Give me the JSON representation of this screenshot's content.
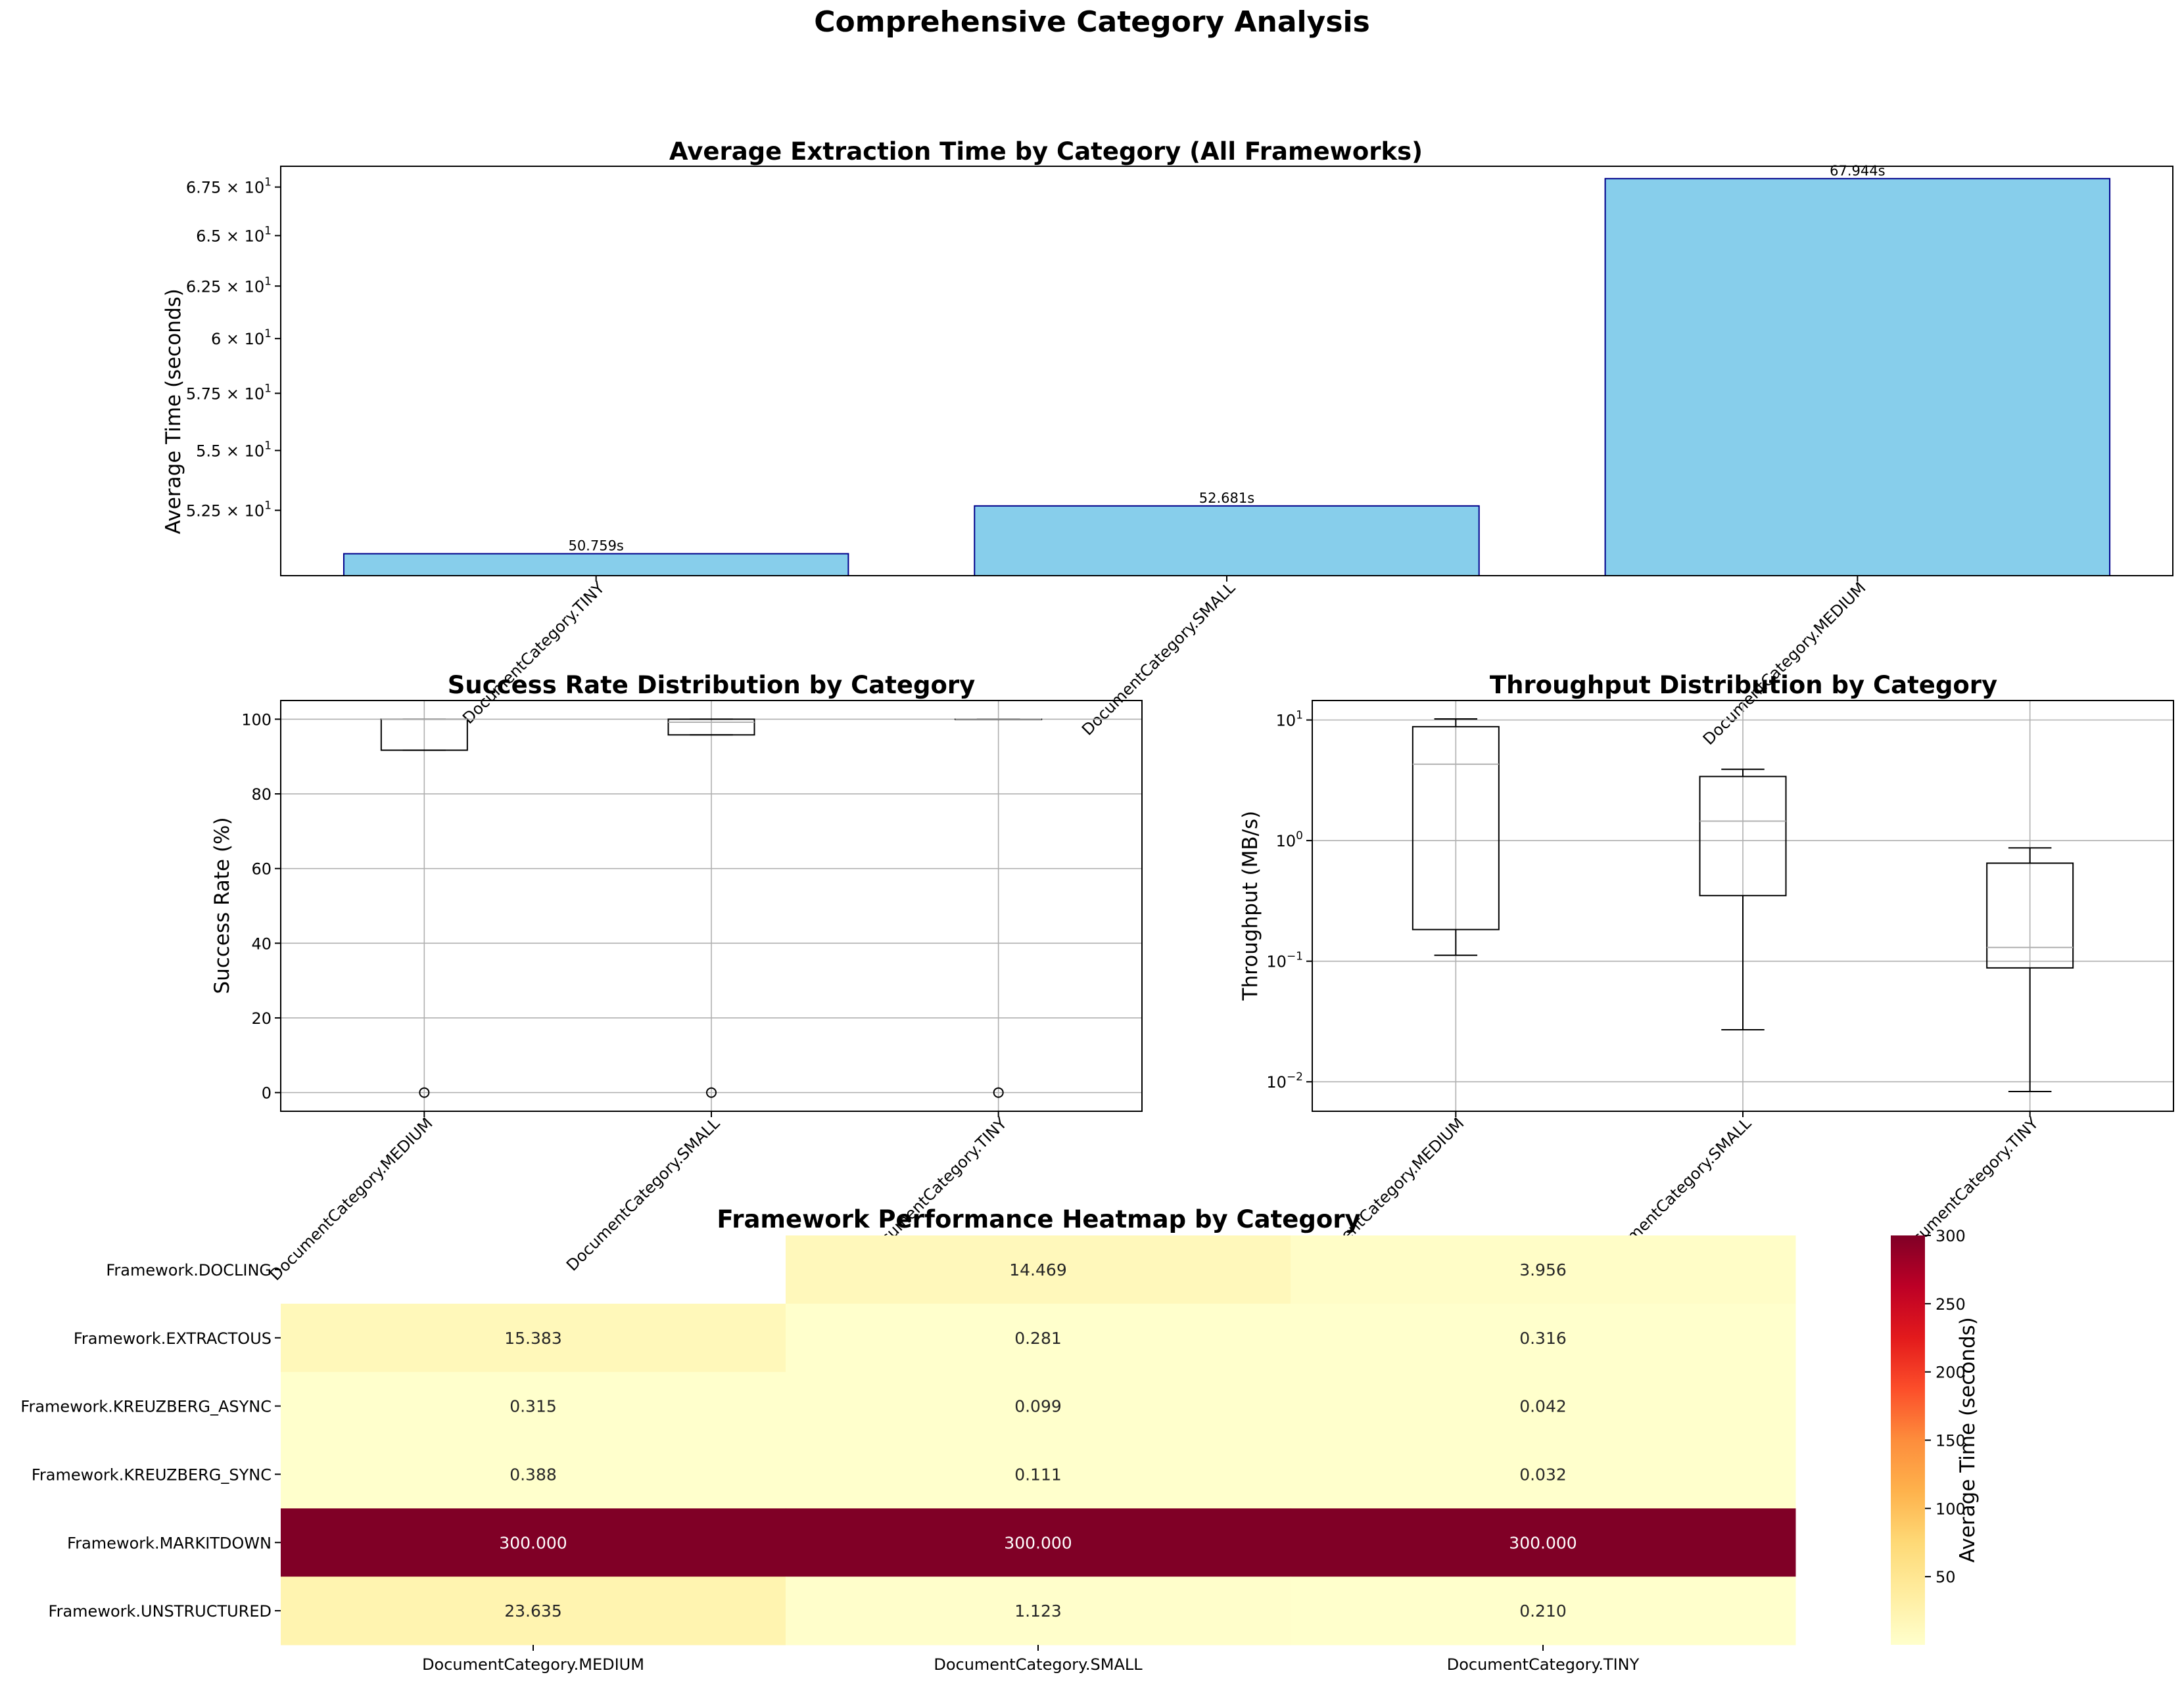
{
  "suptitle": "Comprehensive Category Analysis",
  "chart_data": [
    {
      "type": "bar",
      "title": "Average Extraction Time by Category (All Frameworks)",
      "xlabel": "",
      "ylabel": "Average Time (seconds)",
      "yscale": "log",
      "ylim": [
        49.9,
        68.6
      ],
      "categories": [
        "DocumentCategory.TINY",
        "DocumentCategory.SMALL",
        "DocumentCategory.MEDIUM"
      ],
      "values": [
        50.759,
        52.681,
        67.944
      ],
      "data_labels": [
        "50.759s",
        "52.681s",
        "67.944s"
      ],
      "yticks": [
        52.5,
        55,
        57.5,
        60,
        62.5,
        65,
        67.5
      ],
      "ytick_labels": [
        {
          "base": "5.25 × 10",
          "exp": "1"
        },
        {
          "base": "5.5 × 10",
          "exp": "1"
        },
        {
          "base": "5.75 × 10",
          "exp": "1"
        },
        {
          "base": "6 × 10",
          "exp": "1"
        },
        {
          "base": "6.25 × 10",
          "exp": "1"
        },
        {
          "base": "6.5 × 10",
          "exp": "1"
        },
        {
          "base": "6.75 × 10",
          "exp": "1"
        }
      ],
      "bar_color": "#87ceeb",
      "edge_color": "#00008b"
    },
    {
      "type": "box",
      "title": "Success Rate Distribution by Category",
      "xlabel": "",
      "ylabel": "Success Rate (%)",
      "ylim": [
        -5,
        105
      ],
      "grid": true,
      "categories": [
        "DocumentCategory.MEDIUM",
        "DocumentCategory.SMALL",
        "DocumentCategory.TINY"
      ],
      "boxes": [
        {
          "whislo": 91.7,
          "q1": 91.7,
          "med": 100,
          "q3": 100,
          "whishi": 100,
          "fliers": [
            0
          ]
        },
        {
          "whislo": 95.8,
          "q1": 95.8,
          "med": 99.2,
          "q3": 100,
          "whishi": 100,
          "fliers": [
            0
          ]
        },
        {
          "whislo": 100,
          "q1": 100,
          "med": 100,
          "q3": 100,
          "whishi": 100,
          "fliers": [
            0
          ]
        }
      ],
      "yticks": [
        0,
        20,
        40,
        60,
        80,
        100
      ],
      "ytick_labels": [
        "0",
        "20",
        "40",
        "60",
        "80",
        "100"
      ]
    },
    {
      "type": "box",
      "title": "Throughput Distribution by Category",
      "xlabel": "",
      "ylabel": "Throughput (MB/s)",
      "yscale": "log",
      "ylim": [
        0.0057,
        14.5
      ],
      "grid": true,
      "categories": [
        "DocumentCategory.MEDIUM",
        "DocumentCategory.SMALL",
        "DocumentCategory.TINY"
      ],
      "boxes": [
        {
          "whislo": 0.112,
          "q1": 0.183,
          "med": 4.3,
          "q3": 8.8,
          "whishi": 10.2,
          "fliers": []
        },
        {
          "whislo": 0.027,
          "q1": 0.35,
          "med": 1.45,
          "q3": 3.4,
          "whishi": 3.9,
          "fliers": []
        },
        {
          "whislo": 0.0083,
          "q1": 0.088,
          "med": 0.13,
          "q3": 0.65,
          "whishi": 0.87,
          "fliers": []
        }
      ],
      "yticks": [
        0.01,
        0.1,
        1,
        10
      ],
      "ytick_labels": [
        {
          "base": "10",
          "exp": "−2"
        },
        {
          "base": "10",
          "exp": "−1"
        },
        {
          "base": "10",
          "exp": "0"
        },
        {
          "base": "10",
          "exp": "1"
        }
      ]
    },
    {
      "type": "heatmap",
      "title": "Framework Performance Heatmap by Category",
      "xlabel": "",
      "ylabel": "",
      "x": [
        "DocumentCategory.MEDIUM",
        "DocumentCategory.SMALL",
        "DocumentCategory.TINY"
      ],
      "y": [
        "Framework.DOCLING",
        "Framework.EXTRACTOUS",
        "Framework.KREUZBERG_ASYNC",
        "Framework.KREUZBERG_SYNC",
        "Framework.MARKITDOWN",
        "Framework.UNSTRUCTURED"
      ],
      "values": [
        [
          null,
          14.469,
          3.956
        ],
        [
          15.383,
          0.281,
          0.316
        ],
        [
          0.315,
          0.099,
          0.042
        ],
        [
          0.388,
          0.111,
          0.032
        ],
        [
          300.0,
          300.0,
          300.0
        ],
        [
          23.635,
          1.123,
          0.21
        ]
      ],
      "value_labels": [
        [
          "",
          "14.469",
          "3.956"
        ],
        [
          "15.383",
          "0.281",
          "0.316"
        ],
        [
          "0.315",
          "0.099",
          "0.042"
        ],
        [
          "0.388",
          "0.111",
          "0.032"
        ],
        [
          "300.000",
          "300.000",
          "300.000"
        ],
        [
          "23.635",
          "1.123",
          "0.210"
        ]
      ],
      "colormap": "YlOrRd",
      "vmin": 0.032,
      "vmax": 300,
      "colorbar": {
        "label": "Average Time (seconds)",
        "ticks": [
          50,
          100,
          150,
          200,
          250,
          300
        ],
        "tick_labels": [
          "50",
          "100",
          "150",
          "200",
          "250",
          "300"
        ]
      }
    }
  ]
}
